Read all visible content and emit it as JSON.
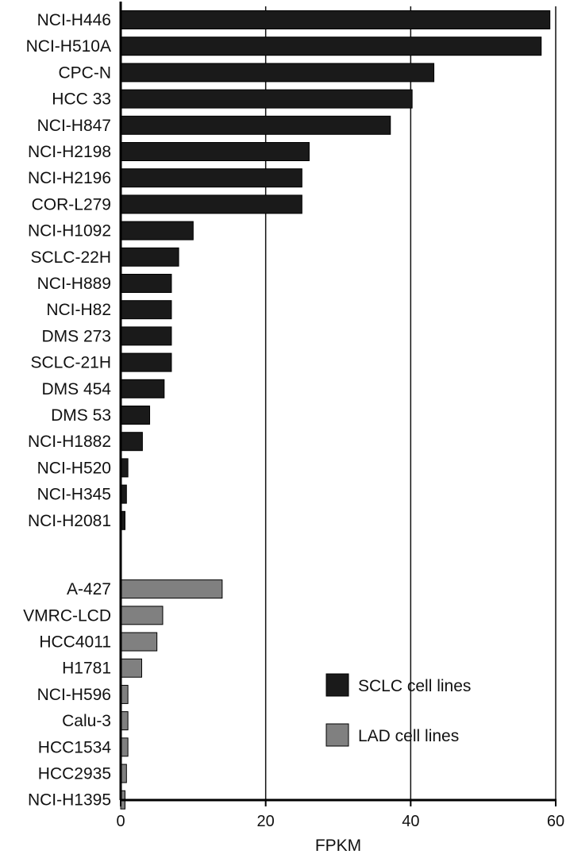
{
  "chart_data": {
    "type": "bar",
    "orientation": "horizontal",
    "title": "",
    "xlabel": "FPKM",
    "ylabel": "",
    "xlim": [
      0,
      60
    ],
    "xticks": [
      0,
      20,
      40,
      60
    ],
    "grid": "vertical lines at 20, 40, 60",
    "legend_position": "bottom-right",
    "series": [
      {
        "name": "SCLC cell lines",
        "color": "#1a1a1a",
        "categories": [
          "NCI-H446",
          "NCI-H510A",
          "CPC-N",
          "HCC 33",
          "NCI-H847",
          "NCI-H2198",
          "NCI-H2196",
          "COR-L279",
          "NCI-H1092",
          "SCLC-22H",
          "NCI-H889",
          "NCI-H82",
          "DMS 273",
          "SCLC-21H",
          "DMS 454",
          "DMS 53",
          "NCI-H1882",
          "NCI-H520",
          "NCI-H345",
          "NCI-H2081"
        ],
        "values": [
          59.2,
          58.0,
          43.2,
          40.2,
          37.2,
          26.0,
          25.0,
          25.0,
          10.0,
          8.0,
          7.0,
          7.0,
          7.0,
          7.0,
          6.0,
          4.0,
          3.0,
          1.0,
          0.8,
          0.6
        ]
      },
      {
        "name": "LAD cell lines",
        "color": "#808080",
        "categories": [
          "A-427",
          "VMRC-LCD",
          "HCC4011",
          "H1781",
          "NCI-H596",
          "Calu-3",
          "HCC1534",
          "HCC2935",
          "NCI-H1395"
        ],
        "values": [
          14.0,
          5.8,
          5.0,
          2.9,
          1.0,
          1.0,
          1.0,
          0.8,
          0.6
        ]
      }
    ]
  }
}
